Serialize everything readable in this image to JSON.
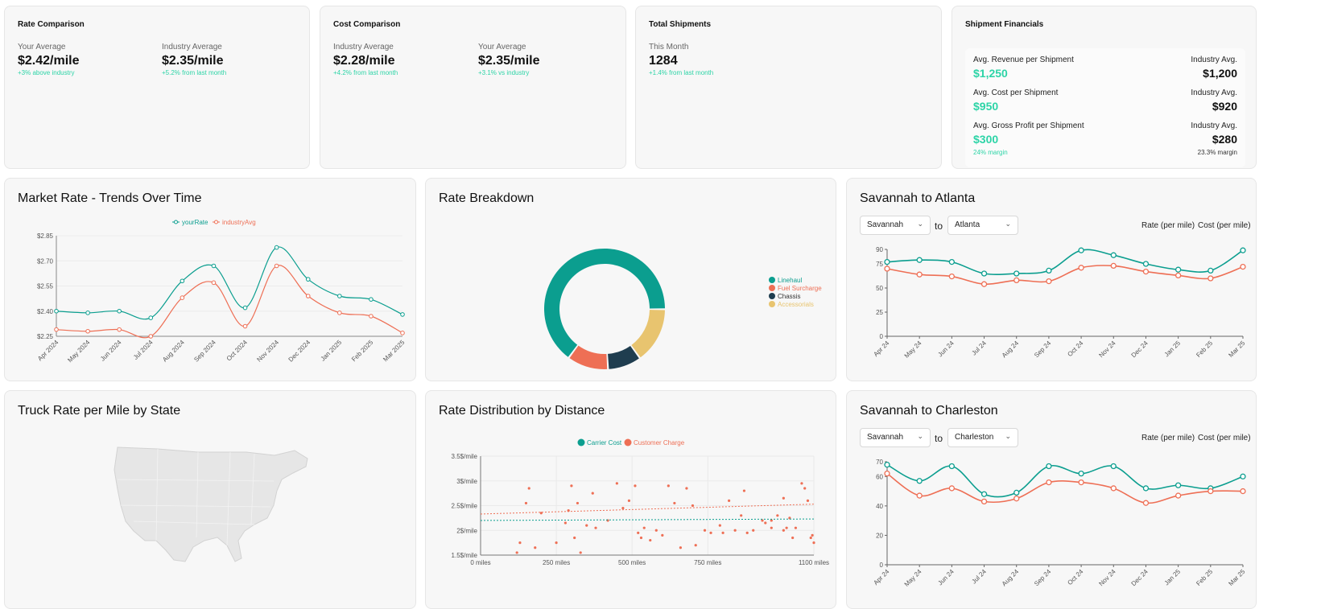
{
  "colors": {
    "teal": "#0b9e8f",
    "salmon": "#ee6f55",
    "navy": "#1f3d4f",
    "gold": "#e8c46f",
    "green_text": "#2dd4a7"
  },
  "rate_comparison": {
    "title": "Rate Comparison",
    "your_label": "Your Average",
    "your_value": "$2.42/mile",
    "your_note": "+3% above industry",
    "ind_label": "Industry Average",
    "ind_value": "$2.35/mile",
    "ind_note": "+5.2% from last month"
  },
  "cost_comparison": {
    "title": "Cost Comparison",
    "ind_label": "Industry Average",
    "ind_value": "$2.28/mile",
    "ind_note": "+4.2% from last month",
    "your_label": "Your Average",
    "your_value": "$2.35/mile",
    "your_note": "+3.1% vs industry"
  },
  "total_shipments": {
    "title": "Total Shipments",
    "label": "This Month",
    "value": "1284",
    "note": "+1.4% from last month"
  },
  "shipment_financials": {
    "title": "Shipment Financials",
    "rows": [
      {
        "label": "Avg. Revenue per Shipment",
        "value": "$1,250",
        "ind_label": "Industry Avg.",
        "ind_value": "$1,200",
        "margin": "",
        "ind_margin": ""
      },
      {
        "label": "Avg. Cost per Shipment",
        "value": "$950",
        "ind_label": "Industry Avg.",
        "ind_value": "$920",
        "margin": "",
        "ind_margin": ""
      },
      {
        "label": "Avg. Gross Profit per Shipment",
        "value": "$300",
        "ind_label": "Industry Avg.",
        "ind_value": "$280",
        "margin": "24% margin",
        "ind_margin": "23.3% margin"
      }
    ]
  },
  "market_trends": {
    "title": "Market Rate - Trends Over Time",
    "chart_data": {
      "type": "line",
      "categories": [
        "Apr 2024",
        "May 2024",
        "Jun 2024",
        "Jul 2024",
        "Aug 2024",
        "Sep 2024",
        "Oct 2024",
        "Nov 2024",
        "Dec 2024",
        "Jan 2025",
        "Feb 2025",
        "Mar 2025"
      ],
      "series": [
        {
          "name": "yourRate",
          "values": [
            2.4,
            2.39,
            2.4,
            2.36,
            2.58,
            2.67,
            2.42,
            2.78,
            2.59,
            2.49,
            2.47,
            2.38
          ]
        },
        {
          "name": "industryAvg",
          "values": [
            2.29,
            2.28,
            2.29,
            2.25,
            2.48,
            2.57,
            2.31,
            2.67,
            2.49,
            2.39,
            2.37,
            2.27
          ]
        }
      ],
      "yticks": [
        "$2.25",
        "$2.40",
        "$2.55",
        "$2.70",
        "$2.85"
      ],
      "ylim": [
        2.25,
        2.85
      ],
      "legend": "top-center"
    }
  },
  "rate_breakdown": {
    "title": "Rate Breakdown",
    "chart_data": {
      "type": "pie",
      "slices": [
        {
          "name": "Linehaul",
          "value": 65
        },
        {
          "name": "Fuel Surcharge",
          "value": 11
        },
        {
          "name": "Chassis",
          "value": 9
        },
        {
          "name": "Accessorials",
          "value": 15
        }
      ],
      "legend": "right"
    }
  },
  "sav_atl": {
    "title": "Savannah to Atlanta",
    "from": "Savannah",
    "to_word": "to",
    "to": "Atlanta",
    "legend_rate": "Rate (per mile)",
    "legend_cost": "Cost (per mile)",
    "chart_data": {
      "type": "line",
      "categories": [
        "Apr 24",
        "May 24",
        "Jun 24",
        "Jul 24",
        "Aug 24",
        "Sep 24",
        "Oct 24",
        "Nov 24",
        "Dec 24",
        "Jan 25",
        "Feb 25",
        "Mar 25"
      ],
      "series": [
        {
          "name": "Rate (per mile)",
          "values": [
            77,
            79,
            77,
            65,
            65,
            68,
            89,
            84,
            75,
            69,
            68,
            89
          ]
        },
        {
          "name": "Cost (per mile)",
          "values": [
            70,
            64,
            62,
            54,
            58,
            57,
            71,
            73,
            67,
            63,
            60,
            72
          ]
        }
      ],
      "yticks": [
        "0",
        "25",
        "50",
        "75",
        "90"
      ],
      "ylim": [
        0,
        90
      ]
    }
  },
  "state_map": {
    "title": "Truck Rate per Mile by State"
  },
  "distance_dist": {
    "title": "Rate Distribution by Distance",
    "chart_data": {
      "type": "scatter",
      "series_names": [
        "Carrier Cost",
        "Customer Charge"
      ],
      "xticks": [
        "0 miles",
        "250 miles",
        "500 miles",
        "750 miles",
        "1100 miles"
      ],
      "yticks": [
        "1.5$/mile",
        "2$/mile",
        "2.5$/mile",
        "3$/mile",
        "3.5$/mile"
      ],
      "xlim": [
        0,
        1100
      ],
      "ylim": [
        1.5,
        3.5
      ],
      "points": [
        [
          120,
          1.55
        ],
        [
          130,
          1.75
        ],
        [
          150,
          2.55
        ],
        [
          160,
          2.85
        ],
        [
          180,
          1.65
        ],
        [
          200,
          2.35
        ],
        [
          250,
          1.75
        ],
        [
          280,
          2.15
        ],
        [
          290,
          2.4
        ],
        [
          300,
          2.9
        ],
        [
          310,
          1.85
        ],
        [
          320,
          2.55
        ],
        [
          330,
          1.55
        ],
        [
          350,
          2.1
        ],
        [
          370,
          2.75
        ],
        [
          380,
          2.05
        ],
        [
          420,
          2.2
        ],
        [
          450,
          2.95
        ],
        [
          470,
          2.45
        ],
        [
          490,
          2.6
        ],
        [
          510,
          2.9
        ],
        [
          520,
          1.95
        ],
        [
          530,
          1.85
        ],
        [
          540,
          2.05
        ],
        [
          560,
          1.8
        ],
        [
          580,
          2.0
        ],
        [
          600,
          1.9
        ],
        [
          620,
          2.9
        ],
        [
          640,
          2.55
        ],
        [
          660,
          1.65
        ],
        [
          680,
          2.85
        ],
        [
          700,
          2.5
        ],
        [
          710,
          1.7
        ],
        [
          740,
          2.0
        ],
        [
          760,
          1.95
        ],
        [
          790,
          2.1
        ],
        [
          800,
          1.95
        ],
        [
          820,
          2.6
        ],
        [
          840,
          2.0
        ],
        [
          870,
          2.8
        ],
        [
          900,
          2.0
        ],
        [
          930,
          2.2
        ],
        [
          960,
          2.2
        ],
        [
          1000,
          2.0
        ],
        [
          1040,
          2.05
        ],
        [
          1060,
          2.95
        ],
        [
          1080,
          2.6
        ],
        [
          1090,
          1.85
        ],
        [
          1095,
          1.9
        ],
        [
          1100,
          1.75
        ],
        [
          960,
          2.05
        ],
        [
          980,
          2.3
        ],
        [
          1000,
          2.65
        ],
        [
          1020,
          2.25
        ],
        [
          940,
          2.15
        ],
        [
          860,
          2.3
        ],
        [
          880,
          1.95
        ],
        [
          1070,
          2.85
        ],
        [
          1030,
          1.85
        ],
        [
          1010,
          2.05
        ]
      ],
      "trend_cost": [
        [
          0,
          2.2
        ],
        [
          1100,
          2.23
        ]
      ],
      "trend_charge": [
        [
          0,
          2.33
        ],
        [
          1100,
          2.53
        ]
      ]
    }
  },
  "sav_chs": {
    "title": "Savannah to Charleston",
    "from": "Savannah",
    "to_word": "to",
    "to": "Charleston",
    "legend_rate": "Rate (per mile)",
    "legend_cost": "Cost (per mile)",
    "chart_data": {
      "type": "line",
      "categories": [
        "Apr 24",
        "May 24",
        "Jun 24",
        "Jul 24",
        "Aug 24",
        "Sep 24",
        "Oct 24",
        "Nov 24",
        "Dec 24",
        "Jan 25",
        "Feb 25",
        "Mar 25"
      ],
      "series": [
        {
          "name": "Rate (per mile)",
          "values": [
            68,
            57,
            67,
            48,
            49,
            67,
            62,
            67,
            52,
            54,
            52,
            60
          ]
        },
        {
          "name": "Cost (per mile)",
          "values": [
            62,
            47,
            52,
            43,
            45,
            56,
            56,
            52,
            42,
            47,
            50,
            50
          ]
        }
      ],
      "yticks": [
        "0",
        "20",
        "40",
        "60",
        "70"
      ],
      "ylim": [
        0,
        70
      ]
    }
  }
}
